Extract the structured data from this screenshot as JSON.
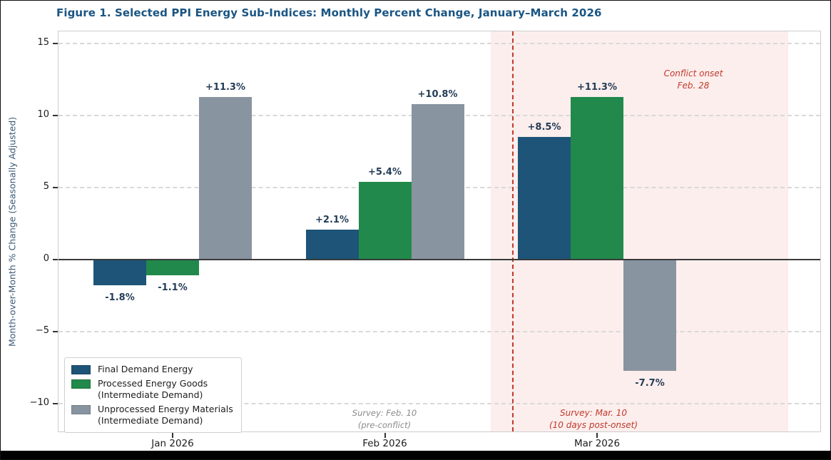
{
  "title": "Figure 1. Selected PPI Energy Sub-Indices: Monthly Percent Change, January–March 2026",
  "colors": {
    "title_text": "#1a5583",
    "bar_blue": "#1d5478",
    "bar_green": "#21894b",
    "bar_gray": "#8894a0",
    "shaded_region_pink": "#fceeed",
    "conflict_red": "#c0392b",
    "survey_gray": "#8a8a8a",
    "value_label_navy": "#243d57",
    "axis_label_slate": "#3c5a78"
  },
  "chart_data": {
    "type": "bar",
    "categories": [
      "Jan 2026",
      "Feb 2026",
      "Mar 2026"
    ],
    "series": [
      {
        "name": "Final Demand Energy",
        "color_key": "bar_blue",
        "values": [
          -1.8,
          2.1,
          8.5
        ],
        "data_labels": [
          "-1.8%",
          "+2.1%",
          "+8.5%"
        ]
      },
      {
        "name": "Processed Energy Goods (Intermediate Demand)",
        "color_key": "bar_green",
        "values": [
          -1.1,
          5.4,
          11.3
        ],
        "data_labels": [
          "-1.1%",
          "+5.4%",
          "+11.3%"
        ]
      },
      {
        "name": "Unprocessed Energy Materials (Intermediate Demand)",
        "color_key": "bar_gray",
        "values": [
          11.3,
          10.8,
          -7.7
        ],
        "data_labels": [
          "+11.3%",
          "+10.8%",
          "-7.7%"
        ]
      }
    ],
    "title": "Figure 1. Selected PPI Energy Sub-Indices: Monthly Percent Change, January–March 2026",
    "xlabel": "",
    "ylabel": "Month-over-Month % Change (Seasonally Adjusted)",
    "ylim": [
      -11.8,
      15.8
    ],
    "y_ticks": [
      15,
      10,
      5,
      0,
      -5,
      -10
    ],
    "y_tick_labels": [
      "15",
      "10",
      "5",
      "0",
      "−5",
      "−10"
    ],
    "grid": "horizontal dashed",
    "zero_line": true,
    "legend_position": "lower left",
    "shaded_region": {
      "label": "conflict period",
      "x_start_category_units": 1.5,
      "x_end_category_units": 2.9,
      "color_key": "shaded_region_pink"
    },
    "vertical_line": {
      "x_category_units": 1.6,
      "style": "dashed",
      "color_key": "conflict_red"
    },
    "annotations": [
      {
        "id": "conflict-onset",
        "lines": [
          "Conflict onset",
          "Feb. 28"
        ],
        "color": "red"
      },
      {
        "id": "survey-feb",
        "lines": [
          "Survey: Feb. 10",
          "(pre-conflict)"
        ],
        "color": "gray"
      },
      {
        "id": "survey-mar",
        "lines": [
          "Survey: Mar. 10",
          "(10 days post-onset)"
        ],
        "color": "red"
      }
    ]
  },
  "legend": {
    "items": [
      {
        "color_key": "bar_blue",
        "label_lines": [
          "Final Demand Energy",
          ""
        ]
      },
      {
        "color_key": "bar_green",
        "label_lines": [
          "Processed Energy Goods",
          "(Intermediate Demand)"
        ]
      },
      {
        "color_key": "bar_gray",
        "label_lines": [
          "Unprocessed Energy Materials",
          "(Intermediate Demand)"
        ]
      }
    ]
  }
}
